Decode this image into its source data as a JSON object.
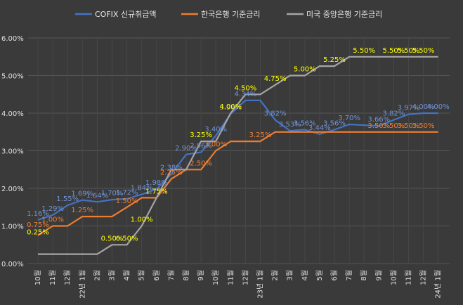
{
  "chart_data": {
    "type": "line",
    "categories": [
      "10월",
      "11월",
      "12월",
      "22년 1월",
      "2월",
      "3월",
      "4월",
      "5월",
      "6월",
      "7월",
      "8월",
      "9월",
      "10월",
      "11월",
      "12월",
      "23년 1월",
      "2월",
      "3월",
      "4월",
      "5월",
      "6월",
      "7월",
      "8월",
      "9월",
      "10월",
      "11월",
      "12월",
      "24년 1월"
    ],
    "ylim": [
      0,
      6
    ],
    "yticks": [
      "0.00%",
      "1.00%",
      "2.00%",
      "3.00%",
      "4.00%",
      "5.00%",
      "6.00%"
    ],
    "grid": true,
    "legend_position": "top",
    "series": [
      {
        "name": "COFIX 신규취급액",
        "color": "#4472c4",
        "values": [
          1.16,
          1.29,
          1.55,
          1.69,
          1.64,
          1.7,
          1.72,
          1.84,
          1.98,
          2.38,
          2.9,
          2.96,
          3.4,
          3.98,
          4.34,
          4.34,
          3.82,
          3.53,
          3.56,
          3.44,
          3.56,
          3.7,
          3.68,
          3.66,
          3.82,
          3.97,
          4.0,
          4.0
        ],
        "labels": [
          "1.16%",
          "1.29%",
          "1.55%",
          "1.69%",
          "1.64%",
          "1.70%",
          "1.72%",
          "1.84%",
          "1.98%",
          "2.38%",
          "2.90%",
          "2.96%",
          "3.40%",
          "3.98%",
          "4.34%",
          "",
          "3.82%",
          "3.53%",
          "3.56%",
          "3.44%",
          "3.56%",
          "3.70%",
          "",
          "3.66%",
          "3.82%",
          "3.97%",
          "4.00%",
          "4.00%"
        ],
        "label_color": "#6f93d6"
      },
      {
        "name": "한국은행 기준금리",
        "color": "#ed7d31",
        "values": [
          0.75,
          1.0,
          1.0,
          1.25,
          1.25,
          1.25,
          1.5,
          1.75,
          1.75,
          2.25,
          2.5,
          2.5,
          3.0,
          3.25,
          3.25,
          3.25,
          3.5,
          3.5,
          3.5,
          3.5,
          3.5,
          3.5,
          3.5,
          3.5,
          3.5,
          3.5,
          3.5,
          3.5
        ],
        "labels": [
          "0.75%",
          "1.00%",
          "",
          "1.25%",
          "",
          "",
          "1.50%",
          "",
          "1.75%",
          "2.25%",
          "",
          "2.50%",
          "3.00%",
          "",
          "",
          "3.25%",
          "",
          "",
          "",
          "",
          "",
          "",
          "",
          "3.50%",
          "3.50%",
          "3.50%",
          "3.50%",
          ""
        ],
        "label_color": "#ed7d31"
      },
      {
        "name": "미국 중앙은행 기준금리",
        "color": "#a5a5a5",
        "values": [
          0.25,
          0.25,
          0.25,
          0.25,
          0.25,
          0.5,
          0.5,
          1.0,
          1.75,
          2.5,
          2.5,
          3.25,
          3.25,
          4.0,
          4.5,
          4.5,
          4.75,
          5.0,
          5.0,
          5.25,
          5.25,
          5.5,
          5.5,
          5.5,
          5.5,
          5.5,
          5.5,
          5.5
        ],
        "labels": [
          "0.25%",
          "",
          "",
          "",
          "",
          "0.50%",
          "0.50%",
          "1.00%",
          "1.75%",
          "",
          "",
          "3.25%",
          "",
          "4.00%",
          "4.50%",
          "",
          "4.75%",
          "",
          "5.00%",
          "",
          "5.25%",
          "",
          "5.50%",
          "",
          "5.50%",
          "5.50%",
          "5.50%",
          ""
        ],
        "label_color": "#ffff00"
      }
    ]
  }
}
